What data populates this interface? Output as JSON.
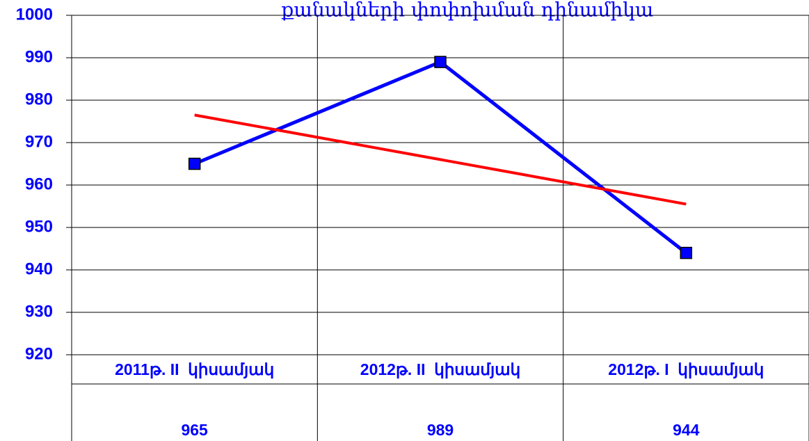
{
  "chart_data": {
    "type": "line",
    "title": "քանակների փոփոխման դինամիկա",
    "categories": [
      "2011թ. II  կիսամյակ",
      "2012թ. II  կիսամյակ",
      "2012թ. I  կիսամյակ"
    ],
    "values": [
      965,
      989,
      944
    ],
    "color": "#0000ff",
    "trendline": {
      "values": [
        976.5,
        966,
        955.5
      ],
      "color": "#ff0000"
    },
    "ylim": [
      920,
      1000
    ],
    "yticks": [
      920,
      930,
      940,
      950,
      960,
      970,
      980,
      990,
      1000
    ],
    "grid": true
  }
}
